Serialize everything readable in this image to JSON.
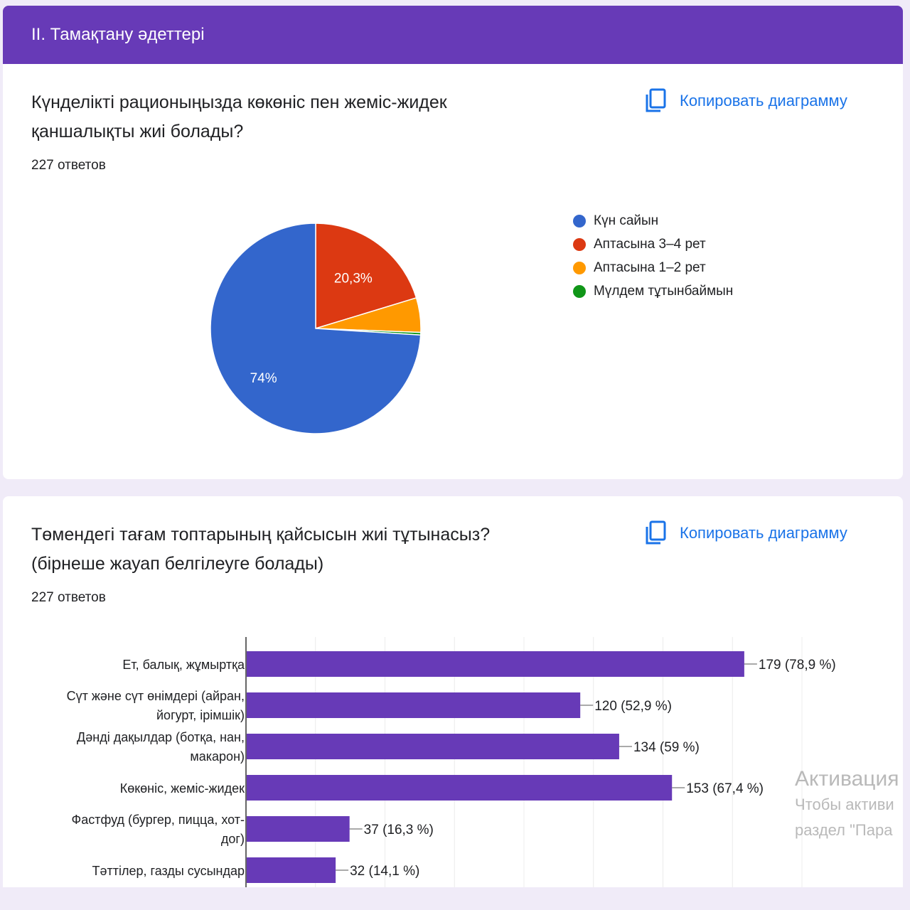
{
  "section": {
    "title": "II. Тамақтану әдеттері"
  },
  "copy_label": "Копировать диаграмму",
  "icons": {
    "copy": "copy-icon"
  },
  "colors": {
    "accent": "#673ab7",
    "link": "#1a73e8",
    "pie": [
      "#3366cc",
      "#dc3912",
      "#ff9900",
      "#109618"
    ],
    "bar": "#673ab7"
  },
  "question1": {
    "title_line1": "Күнделікті рационыңызда көкөніс пен жеміс-жидек",
    "title_line2": "қаншалықты жиі болады?",
    "responses": "227 ответов"
  },
  "question2": {
    "title_line1": "Төмендегі тағам топтарының қайсысын жиі тұтынасыз?",
    "title_line2": "(бірнеше жауап белгілеуге болады)",
    "responses": "227 ответов"
  },
  "chart_data": [
    {
      "type": "pie",
      "labels": [
        "Күн сайын",
        "Аптасына 3–4 рет",
        "Аптасына 1–2 рет",
        "Мүлдем тұтынбаймын"
      ],
      "values": [
        74,
        20.3,
        5.3,
        0.4
      ],
      "slice_labels": [
        "74%",
        "20,3%",
        "",
        ""
      ],
      "legend_position": "right"
    },
    {
      "type": "bar",
      "orientation": "horizontal",
      "categories": [
        [
          "Ет, балық, жұмыртқа"
        ],
        [
          "Сүт және сүт өнімдері (айран,",
          "йогурт, ірімшік)"
        ],
        [
          "Дәнді дақылдар (ботқа, нан,",
          "макарон)"
        ],
        [
          "Көкөніс, жеміс-жидек"
        ],
        [
          "Фастфуд (бургер, пицца, хот-",
          "дог)"
        ],
        [
          "Тәттілер, газды сусындар"
        ]
      ],
      "values": [
        179,
        120,
        134,
        153,
        37,
        32
      ],
      "value_labels": [
        "179 (78,9 %)",
        "120 (52,9 %)",
        "134 (59 %)",
        "153 (67,4 %)",
        "37 (16,3 %)",
        "32 (14,1 %)"
      ],
      "xlim": [
        0,
        200
      ],
      "grid": true
    }
  ],
  "watermark": {
    "line1": "Активация",
    "line2": "Чтобы активи",
    "line3": "раздел \"Пара"
  }
}
